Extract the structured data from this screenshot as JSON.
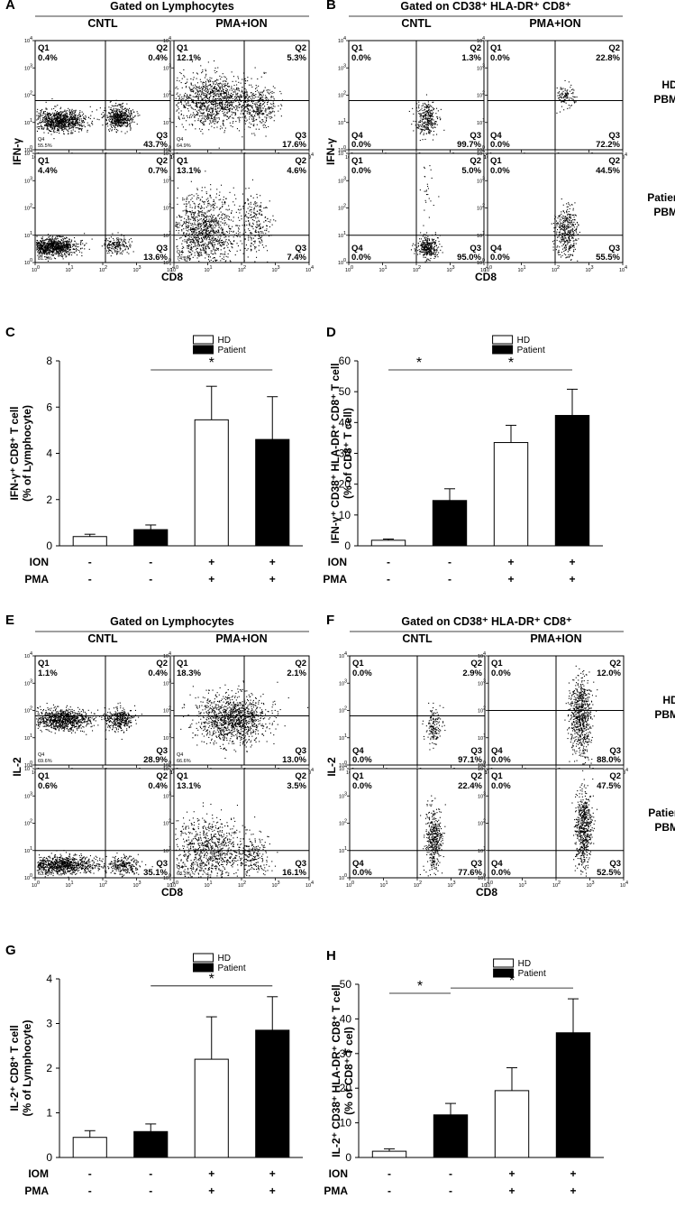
{
  "panels": {
    "A": {
      "label": "A",
      "header": "Gated on Lymphocytes",
      "col_left": "CNTL",
      "col_right": "PMA+ION",
      "ylabel": "IFN-γ",
      "xlabel": "CD8"
    },
    "B": {
      "label": "B",
      "header": "Gated on CD38⁺ HLA-DR⁺ CD8⁺",
      "col_left": "CNTL",
      "col_right": "PMA+ION",
      "ylabel": "IFN-γ",
      "xlabel": "CD8",
      "row1": [
        "HD",
        "PBMC"
      ],
      "row2": [
        "Patient's",
        "PBMC"
      ]
    },
    "E": {
      "label": "E",
      "header": "Gated on Lymphocytes",
      "col_left": "CNTL",
      "col_right": "PMA+ION",
      "ylabel": "IL-2",
      "xlabel": "CD8"
    },
    "F": {
      "label": "F",
      "header": "Gated on CD38⁺ HLA-DR⁺ CD8⁺",
      "col_left": "CNTL",
      "col_right": "PMA+ION",
      "ylabel": "IL-2",
      "xlabel": "CD8",
      "row1": [
        "HD",
        "PBMC"
      ],
      "row2": [
        "Patient's",
        "PBMC"
      ]
    }
  },
  "flow_plots": {
    "A": [
      {
        "Q1": "0.4%",
        "Q2": "0.4%",
        "Q3": "43.7%",
        "Q4": "55.5%"
      },
      {
        "Q1": "12.1%",
        "Q2": "5.3%",
        "Q3": "17.6%",
        "Q4": "64.9%"
      },
      {
        "Q1": "4.4%",
        "Q2": "0.7%",
        "Q3": "13.6%",
        "Q4": "81.3%"
      },
      {
        "Q1": "13.1%",
        "Q2": "4.6%",
        "Q3": "7.4%",
        "Q4": "74.8%"
      }
    ],
    "B": [
      {
        "Q1": "0.0%",
        "Q2": "1.3%",
        "Q3": "99.7%",
        "Q4": "0.0%"
      },
      {
        "Q1": "0.0%",
        "Q2": "22.8%",
        "Q3": "72.2%",
        "Q4": "0.0%"
      },
      {
        "Q1": "0.0%",
        "Q2": "5.0%",
        "Q3": "95.0%",
        "Q4": "0.0%"
      },
      {
        "Q1": "0.0%",
        "Q2": "44.5%",
        "Q3": "55.5%",
        "Q4": "0.0%"
      }
    ],
    "E": [
      {
        "Q1": "1.1%",
        "Q2": "0.4%",
        "Q3": "28.9%",
        "Q4": "69.6%"
      },
      {
        "Q1": "18.3%",
        "Q2": "2.1%",
        "Q3": "13.0%",
        "Q4": "66.6%"
      },
      {
        "Q1": "0.6%",
        "Q2": "0.4%",
        "Q3": "35.1%",
        "Q4": "63.9%"
      },
      {
        "Q1": "13.1%",
        "Q2": "3.5%",
        "Q3": "16.1%",
        "Q4": "68.3%"
      }
    ],
    "F": [
      {
        "Q1": "0.0%",
        "Q2": "2.9%",
        "Q3": "97.1%",
        "Q4": "0.0%"
      },
      {
        "Q1": "0.0%",
        "Q2": "12.0%",
        "Q3": "88.0%",
        "Q4": "0.0%"
      },
      {
        "Q1": "0.0%",
        "Q2": "22.4%",
        "Q3": "77.6%",
        "Q4": "0.0%"
      },
      {
        "Q1": "0.0%",
        "Q2": "47.5%",
        "Q3": "52.5%",
        "Q4": "0.0%"
      }
    ]
  },
  "chart_data": [
    {
      "panel": "C",
      "type": "bar",
      "ylabel_lines": [
        "IFN-γ⁺ CD8⁺ T cell",
        "(% of Lymphocyte)"
      ],
      "ylim": [
        0,
        8
      ],
      "yticks": [
        0,
        2,
        4,
        6,
        8
      ],
      "values": [
        0.4,
        0.7,
        5.45,
        4.6
      ],
      "errors": [
        0.1,
        0.2,
        1.45,
        1.85
      ],
      "fills": [
        "white",
        "black",
        "white",
        "black"
      ],
      "row1_label": "ION",
      "row1": [
        "-",
        "-",
        "+",
        "+"
      ],
      "row2_label": "PMA",
      "row2": [
        "-",
        "-",
        "+",
        "+"
      ],
      "legend": [
        "HD",
        "Patient"
      ],
      "sig": [
        {
          "from": 1,
          "to": 3,
          "label": "*"
        }
      ]
    },
    {
      "panel": "D",
      "type": "bar",
      "ylabel_lines": [
        "IFN-γ⁺ CD38⁺ HLA-DR⁺ CD8⁺ T cell",
        "(% of CD8⁺ T cell)"
      ],
      "ylim": [
        0,
        60
      ],
      "yticks": [
        0,
        10,
        20,
        30,
        40,
        50,
        60
      ],
      "values": [
        1.8,
        14.7,
        33.5,
        42.3
      ],
      "errors": [
        0.4,
        3.8,
        5.6,
        8.5
      ],
      "fills": [
        "white",
        "black",
        "white",
        "black"
      ],
      "row1_label": "ION",
      "row1": [
        "-",
        "-",
        "+",
        "+"
      ],
      "row2_label": "PMA",
      "row2": [
        "-",
        "-",
        "+",
        "+"
      ],
      "legend": [
        "HD",
        "Patient"
      ],
      "sig": [
        {
          "from": 0,
          "to": 1,
          "label": "*"
        },
        {
          "from": 1,
          "to": 3,
          "label": "*"
        }
      ]
    },
    {
      "panel": "G",
      "type": "bar",
      "ylabel_lines": [
        "IL-2⁺ CD8⁺ T cell",
        "(% of Lymphocyte)"
      ],
      "ylim": [
        0,
        4
      ],
      "yticks": [
        0,
        1,
        2,
        3,
        4
      ],
      "values": [
        0.45,
        0.58,
        2.2,
        2.85
      ],
      "errors": [
        0.15,
        0.17,
        0.95,
        0.75
      ],
      "fills": [
        "white",
        "black",
        "white",
        "black"
      ],
      "row1_label": "IOM",
      "row1": [
        "-",
        "-",
        "+",
        "+"
      ],
      "row2_label": "PMA",
      "row2": [
        "-",
        "-",
        "+",
        "+"
      ],
      "legend": [
        "HD",
        "Patient"
      ],
      "sig": [
        {
          "from": 1,
          "to": 3,
          "label": "*"
        }
      ]
    },
    {
      "panel": "H",
      "type": "bar",
      "ylabel_lines": [
        "IL-2⁺ CD38⁺ HLA-DR⁺ CD8⁺ T cell",
        "(% of CD8⁺ T cel)"
      ],
      "ylim": [
        0,
        50
      ],
      "yticks": [
        0,
        10,
        20,
        30,
        40,
        50
      ],
      "values": [
        1.8,
        12.3,
        19.3,
        36.0
      ],
      "errors": [
        0.7,
        3.3,
        6.6,
        9.8
      ],
      "fills": [
        "white",
        "black",
        "white",
        "black"
      ],
      "row1_label": "ION",
      "row1": [
        "-",
        "-",
        "+",
        "+"
      ],
      "row2_label": "PMA",
      "row2": [
        "-",
        "-",
        "+",
        "+"
      ],
      "legend": [
        "HD",
        "Patient"
      ],
      "sig": [
        {
          "from": 0,
          "to": 1,
          "label": "*"
        },
        {
          "from": 1,
          "to": 3,
          "label": "*"
        }
      ]
    }
  ]
}
